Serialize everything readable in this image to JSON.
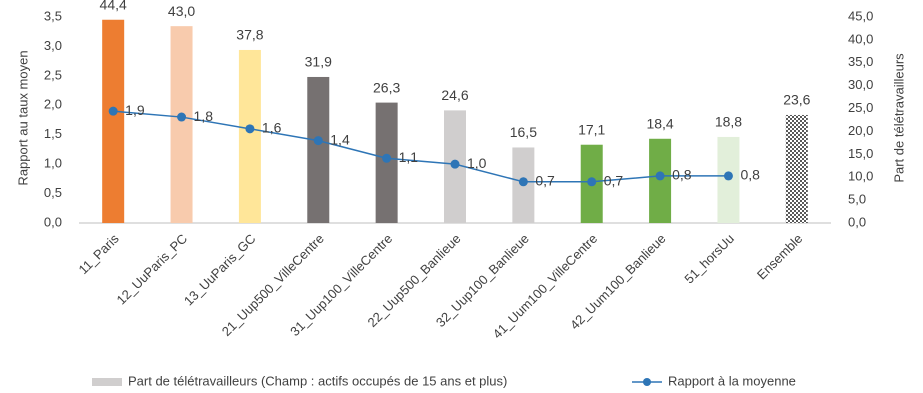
{
  "chart_data": {
    "type": "bar_line",
    "categories": [
      "11_Paris",
      "12_UuParis_PC",
      "13_UuParis_GC",
      "21_Uup500_VilleCentre",
      "31_Uup100_VilleCentre",
      "22_Uup500_Banlieue",
      "32_Uup100_Banlieue",
      "41_Uum100_VilleCentre",
      "42_Uum100_Banlieue",
      "51_horsUu",
      "Ensemble"
    ],
    "series": [
      {
        "name": "Part de télétravailleurs (Champ : actifs occupés de 15 ans et plus)",
        "type": "bar",
        "axis": "y2",
        "color": "#d0cece",
        "colors": [
          "#ed7d31",
          "#f8cbad",
          "#ffe699",
          "#767171",
          "#767171",
          "#d0cece",
          "#d0cece",
          "#70ad47",
          "#70ad47",
          "#e2efda",
          "#595959"
        ],
        "fill_styles": [
          "solid",
          "solid",
          "solid",
          "solid",
          "solid",
          "solid",
          "solid",
          "solid",
          "solid",
          "solid",
          "checkered"
        ],
        "values": [
          44.4,
          43.0,
          37.8,
          31.9,
          26.3,
          24.6,
          16.5,
          17.1,
          18.4,
          18.8,
          23.6
        ],
        "value_labels": [
          "44,4",
          "43,0",
          "37,8",
          "31,9",
          "26,3",
          "24,6",
          "16,5",
          "17,1",
          "18,4",
          "18,8",
          "23,6"
        ]
      },
      {
        "name": "Rapport à la moyenne",
        "type": "line",
        "axis": "y",
        "color": "#2e75b6",
        "values": [
          1.9,
          1.8,
          1.6,
          1.4,
          1.1,
          1.0,
          0.7,
          0.7,
          0.8,
          0.8,
          null
        ],
        "value_labels": [
          "1,9",
          "1,8",
          "1,6",
          "1,4",
          "1,1",
          "1,0",
          "0,7",
          "0,7",
          "0,8",
          "0,8",
          null
        ]
      }
    ],
    "ylabel": "Rapport au taux moyen",
    "y2label": "Part de télétravailleurs",
    "ylim": [
      0,
      3.5
    ],
    "yticks": [
      {
        "value": 0,
        "label": "0,0"
      },
      {
        "value": 0.5,
        "label": "0,5"
      },
      {
        "value": 1,
        "label": "1,0"
      },
      {
        "value": 1.5,
        "label": "1,5"
      },
      {
        "value": 2,
        "label": "2,0"
      },
      {
        "value": 2.5,
        "label": "2,5"
      },
      {
        "value": 3,
        "label": "3,0"
      },
      {
        "value": 3.5,
        "label": "3,5"
      }
    ],
    "y2lim": [
      0,
      45
    ],
    "y2ticks": [
      {
        "value": 0,
        "label": "0,0"
      },
      {
        "value": 5,
        "label": "5,0"
      },
      {
        "value": 10,
        "label": "10,0"
      },
      {
        "value": 15,
        "label": "15,0"
      },
      {
        "value": 20,
        "label": "20,0"
      },
      {
        "value": 25,
        "label": "25,0"
      },
      {
        "value": 30,
        "label": "30,0"
      },
      {
        "value": 35,
        "label": "35,0"
      },
      {
        "value": 40,
        "label": "40,0"
      },
      {
        "value": 45,
        "label": "45,0"
      }
    ],
    "grid": false,
    "legend": "bottom"
  }
}
